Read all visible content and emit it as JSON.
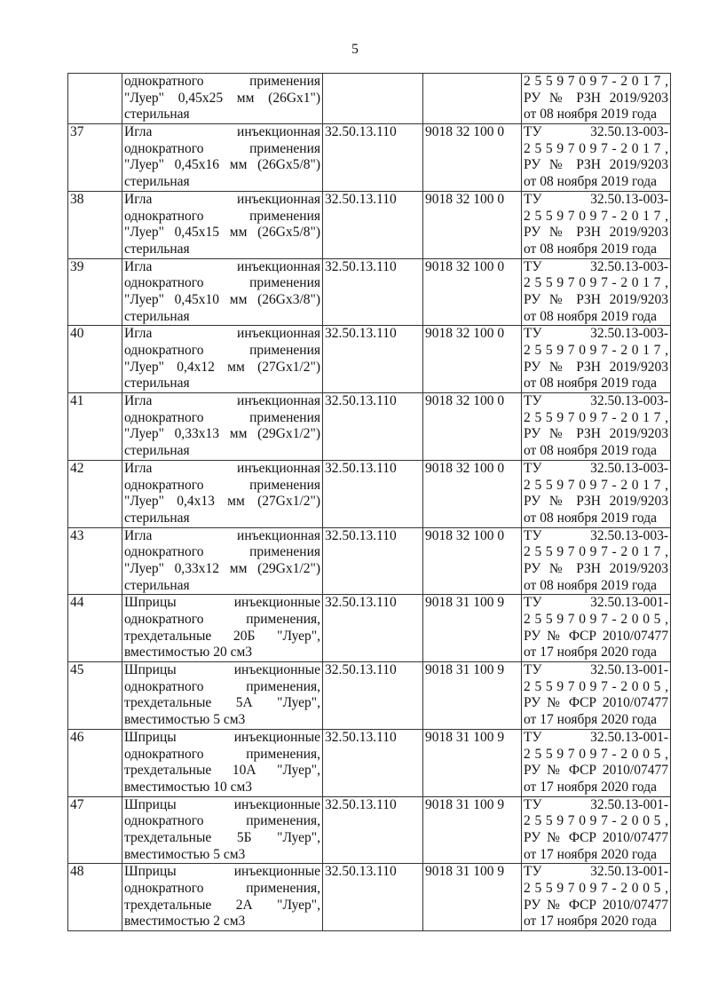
{
  "page_number": "5",
  "rows": [
    {
      "num": "",
      "name": [
        "однократного применения",
        "\"Луер\" 0,45х25 мм (26Gx1\")",
        "стерильная"
      ],
      "okpd": "",
      "tnved": "",
      "doc": [
        "2 5 5 9 7 0 9 7 - 2 0 1 7 ,",
        "РУ № РЗН 2019/9203",
        "от 08 ноября 2019 года"
      ]
    },
    {
      "num": "37",
      "name": [
        "Игла инъекционная",
        "однократного применения",
        "\"Луер\" 0,45х16 мм (26Gx5/8\")",
        "стерильная"
      ],
      "okpd": "32.50.13.110",
      "tnved": "9018 32 100 0",
      "doc": [
        "ТУ 32.50.13-003-",
        "2 5 5 9 7 0 9 7 - 2 0 1 7 ,",
        "РУ № РЗН 2019/9203",
        "от 08 ноября 2019 года"
      ]
    },
    {
      "num": "38",
      "name": [
        "Игла инъекционная",
        "однократного применения",
        "\"Луер\" 0,45х15 мм (26Gx5/8\")",
        "стерильная"
      ],
      "okpd": "32.50.13.110",
      "tnved": "9018 32 100 0",
      "doc": [
        "ТУ 32.50.13-003-",
        "2 5 5 9 7 0 9 7 - 2 0 1 7 ,",
        "РУ № РЗН 2019/9203",
        "от 08 ноября 2019 года"
      ]
    },
    {
      "num": "39",
      "name": [
        "Игла инъекционная",
        "однократного применения",
        "\"Луер\" 0,45х10 мм (26Gx3/8\")",
        "стерильная"
      ],
      "okpd": "32.50.13.110",
      "tnved": "9018 32 100 0",
      "doc": [
        "ТУ 32.50.13-003-",
        "2 5 5 9 7 0 9 7 - 2 0 1 7 ,",
        "РУ № РЗН 2019/9203",
        "от 08 ноября 2019 года"
      ]
    },
    {
      "num": "40",
      "name": [
        "Игла инъекционная",
        "однократного применения",
        "\"Луер\" 0,4х12 мм (27Gx1/2\")",
        "стерильная"
      ],
      "okpd": "32.50.13.110",
      "tnved": "9018 32 100 0",
      "doc": [
        "ТУ 32.50.13-003-",
        "2 5 5 9 7 0 9 7 - 2 0 1 7 ,",
        "РУ № РЗН 2019/9203",
        "от 08 ноября 2019 года"
      ]
    },
    {
      "num": "41",
      "name": [
        "Игла инъекционная",
        "однократного применения",
        "\"Луер\" 0,33х13 мм (29Gx1/2\")",
        "стерильная"
      ],
      "okpd": "32.50.13.110",
      "tnved": "9018 32 100 0",
      "doc": [
        "ТУ 32.50.13-003-",
        "2 5 5 9 7 0 9 7 - 2 0 1 7 ,",
        "РУ № РЗН 2019/9203",
        "от 08 ноября 2019 года"
      ]
    },
    {
      "num": "42",
      "name": [
        "Игла инъекционная",
        "однократного применения",
        "\"Луер\" 0,4х13 мм (27Gx1/2\")",
        "стерильная"
      ],
      "okpd": "32.50.13.110",
      "tnved": "9018 32 100 0",
      "doc": [
        "ТУ 32.50.13-003-",
        "2 5 5 9 7 0 9 7 - 2 0 1 7 ,",
        "РУ № РЗН 2019/9203",
        "от 08 ноября 2019 года"
      ]
    },
    {
      "num": "43",
      "name": [
        "Игла инъекционная",
        "однократного применения",
        "\"Луер\" 0,33х12 мм (29Gx1/2\")",
        "стерильная"
      ],
      "okpd": "32.50.13.110",
      "tnved": "9018 32 100 0",
      "doc": [
        "ТУ 32.50.13-003-",
        "2 5 5 9 7 0 9 7 - 2 0 1 7 ,",
        "РУ № РЗН 2019/9203",
        "от 08 ноября 2019 года"
      ]
    },
    {
      "num": "44",
      "name": [
        "Шприцы инъекционные",
        "однократного применения,",
        "трехдетальные 20Б \"Луер\",",
        "вместимостью 20 см3"
      ],
      "okpd": "32.50.13.110",
      "tnved": "9018 31 100 9",
      "doc": [
        "ТУ 32.50.13-001-",
        "2 5 5 9 7 0 9 7 - 2 0 0 5 ,",
        "РУ № ФСР 2010/07477",
        "от 17 ноября 2020 года"
      ]
    },
    {
      "num": "45",
      "name": [
        "Шприцы инъекционные",
        "однократного применения,",
        "трехдетальные 5А \"Луер\",",
        "вместимостью 5 см3"
      ],
      "okpd": "32.50.13.110",
      "tnved": "9018 31 100 9",
      "doc": [
        "ТУ 32.50.13-001-",
        "2 5 5 9 7 0 9 7 - 2 0 0 5 ,",
        "РУ № ФСР 2010/07477",
        "от 17 ноября 2020 года"
      ]
    },
    {
      "num": "46",
      "name": [
        "Шприцы инъекционные",
        "однократного применения,",
        "трехдетальные 10А \"Луер\",",
        "вместимостью 10 см3"
      ],
      "okpd": "32.50.13.110",
      "tnved": "9018 31 100 9",
      "doc": [
        "ТУ 32.50.13-001-",
        "2 5 5 9 7 0 9 7 - 2 0 0 5 ,",
        "РУ № ФСР 2010/07477",
        "от 17 ноября 2020 года"
      ]
    },
    {
      "num": "47",
      "name": [
        "Шприцы инъекционные",
        "однократного применения,",
        "трехдетальные 5Б \"Луер\",",
        "вместимостью 5 см3"
      ],
      "okpd": "32.50.13.110",
      "tnved": "9018 31 100 9",
      "doc": [
        "ТУ 32.50.13-001-",
        "2 5 5 9 7 0 9 7 - 2 0 0 5 ,",
        "РУ № ФСР 2010/07477",
        "от 17 ноября 2020 года"
      ]
    },
    {
      "num": "48",
      "name": [
        "Шприцы инъекционные",
        "однократного применения,",
        "трехдетальные 2А \"Луер\",",
        "вместимостью 2 см3"
      ],
      "okpd": "32.50.13.110",
      "tnved": "9018 31 100 9",
      "doc": [
        "ТУ 32.50.13-001-",
        "2 5 5 9 7 0 9 7 - 2 0 0 5 ,",
        "РУ № ФСР 2010/07477",
        "от 17 ноября 2020 года"
      ]
    }
  ]
}
